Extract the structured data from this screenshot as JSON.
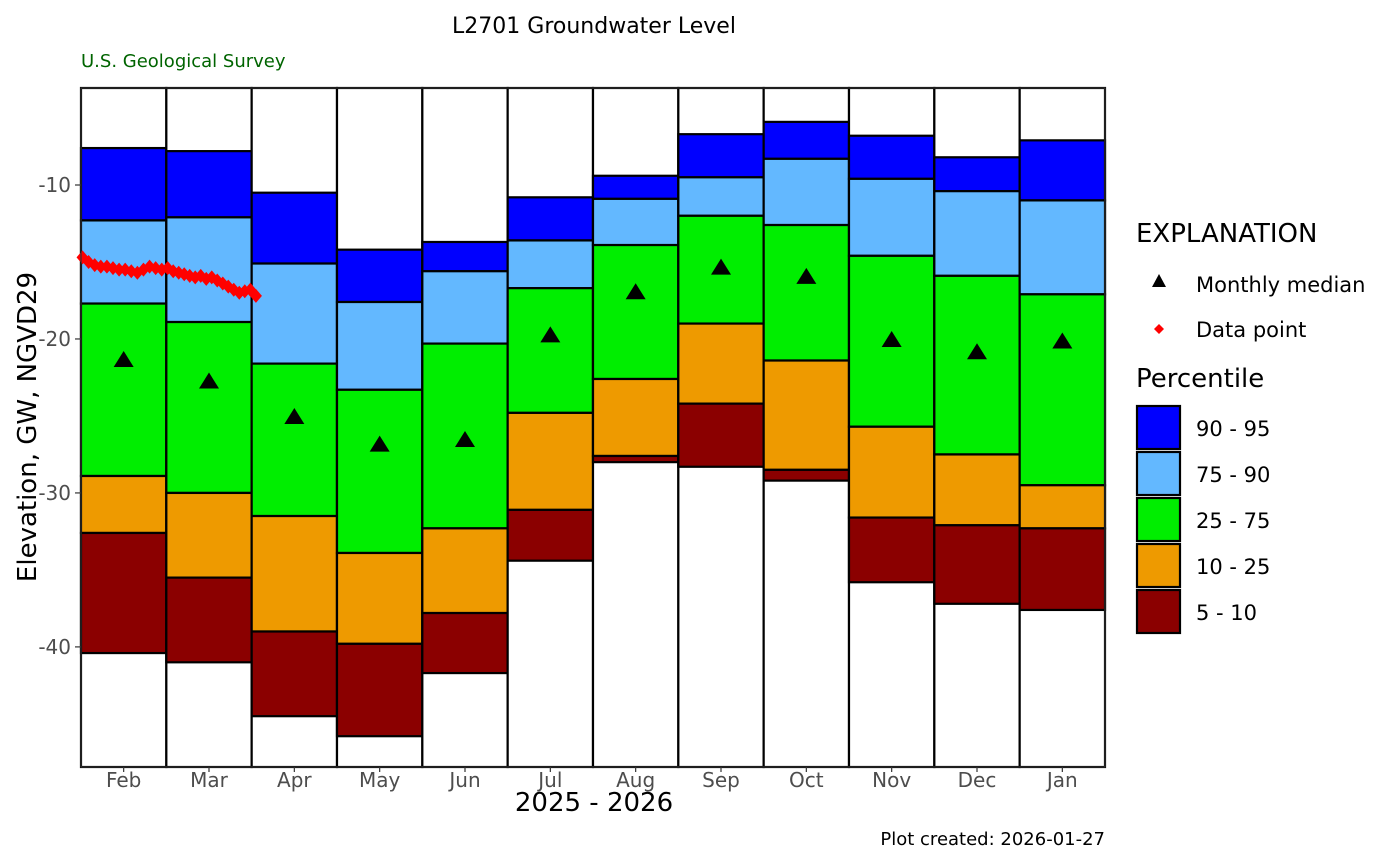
{
  "chart_data": {
    "type": "bar",
    "title": "L2701 Groundwater Level",
    "subtitle": "U.S. Geological Survey",
    "xlabel": "2025 - 2026",
    "ylabel": "Elevation, GW, NGVD29",
    "caption": "Plot created: 2026-01-27",
    "ylim": [
      -47.8,
      -3.7
    ],
    "y_ticks": [
      -10,
      -20,
      -30,
      -40
    ],
    "y_tick_labels": [
      "-10",
      "-20",
      "-30",
      "-40"
    ],
    "grid": false,
    "legend_position": "right",
    "categories": [
      "Feb",
      "Mar",
      "Apr",
      "May",
      "Jun",
      "Jul",
      "Aug",
      "Sep",
      "Oct",
      "Nov",
      "Dec",
      "Jan"
    ],
    "percentile_bounds": [
      {
        "p5": -40.4,
        "p10": -32.6,
        "p25": -28.9,
        "p75": -17.7,
        "p90": -12.3,
        "p95": -7.6
      },
      {
        "p5": -41.0,
        "p10": -35.5,
        "p25": -30.0,
        "p75": -18.9,
        "p90": -12.1,
        "p95": -7.8
      },
      {
        "p5": -44.5,
        "p10": -39.0,
        "p25": -31.5,
        "p75": -21.6,
        "p90": -15.1,
        "p95": -10.5
      },
      {
        "p5": -45.8,
        "p10": -39.8,
        "p25": -33.9,
        "p75": -23.3,
        "p90": -17.6,
        "p95": -14.2
      },
      {
        "p5": -41.7,
        "p10": -37.8,
        "p25": -32.3,
        "p75": -20.3,
        "p90": -15.6,
        "p95": -13.7
      },
      {
        "p5": -34.4,
        "p10": -31.1,
        "p25": -24.8,
        "p75": -16.7,
        "p90": -13.6,
        "p95": -10.8
      },
      {
        "p5": -28.0,
        "p10": -27.6,
        "p25": -22.6,
        "p75": -13.9,
        "p90": -10.9,
        "p95": -9.4
      },
      {
        "p5": -28.3,
        "p10": -24.2,
        "p25": -19.0,
        "p75": -12.0,
        "p90": -9.5,
        "p95": -6.7
      },
      {
        "p5": -29.2,
        "p10": -28.5,
        "p25": -21.4,
        "p75": -12.6,
        "p90": -8.3,
        "p95": -5.9
      },
      {
        "p5": -35.8,
        "p10": -31.6,
        "p25": -25.7,
        "p75": -14.6,
        "p90": -9.6,
        "p95": -6.8
      },
      {
        "p5": -37.2,
        "p10": -32.1,
        "p25": -27.5,
        "p75": -15.9,
        "p90": -10.4,
        "p95": -8.2
      },
      {
        "p5": -37.6,
        "p10": -32.3,
        "p25": -29.5,
        "p75": -17.1,
        "p90": -11.0,
        "p95": -7.1
      }
    ],
    "series": [
      {
        "name": "Monthly median",
        "type": "scatter",
        "marker": "triangle",
        "values": [
          -21.3,
          -22.7,
          -25.0,
          -26.8,
          -26.5,
          -19.7,
          -16.9,
          -15.3,
          -15.9,
          -20.0,
          -20.8,
          -20.1
        ]
      },
      {
        "name": "Data point",
        "type": "line",
        "marker": "diamond",
        "x": [
          "2025-02-01",
          "2025-02-03",
          "2025-02-05",
          "2025-02-07",
          "2025-02-09",
          "2025-02-11",
          "2025-02-13",
          "2025-02-15",
          "2025-02-17",
          "2025-02-19",
          "2025-02-21",
          "2025-02-23",
          "2025-02-25",
          "2025-02-27",
          "2025-03-01",
          "2025-03-03",
          "2025-03-05",
          "2025-03-07",
          "2025-03-09",
          "2025-03-11",
          "2025-03-13",
          "2025-03-15",
          "2025-03-17",
          "2025-03-19",
          "2025-03-21",
          "2025-03-23",
          "2025-03-25",
          "2025-03-27",
          "2025-03-29",
          "2025-03-31",
          "2025-04-02"
        ],
        "values": [
          -14.7,
          -15.0,
          -15.2,
          -15.3,
          -15.3,
          -15.4,
          -15.5,
          -15.5,
          -15.6,
          -15.7,
          -15.5,
          -15.3,
          -15.4,
          -15.5,
          -15.4,
          -15.6,
          -15.7,
          -15.8,
          -15.9,
          -16.0,
          -15.9,
          -16.1,
          -16.0,
          -16.2,
          -16.4,
          -16.6,
          -16.8,
          -17.0,
          -16.9,
          -16.8,
          -17.2
        ]
      }
    ],
    "percentile_classes": [
      {
        "label": "90 - 95",
        "color": "#0000ff"
      },
      {
        "label": "75 - 90",
        "color": "#63b8ff"
      },
      {
        "label": "25 - 75",
        "color": "#00ee00"
      },
      {
        "label": "10 - 25",
        "color": "#ee9a00"
      },
      {
        "label": "5 - 10",
        "color": "#8b0000"
      }
    ],
    "legend": {
      "title": "EXPLANATION",
      "median_label": "Monthly median",
      "data_label": "Data point",
      "percentile_title": "Percentile"
    },
    "colors": {
      "median": "#000000",
      "data_point": "#ff0000",
      "subtitle": "#006400",
      "outline": "#000000"
    }
  }
}
